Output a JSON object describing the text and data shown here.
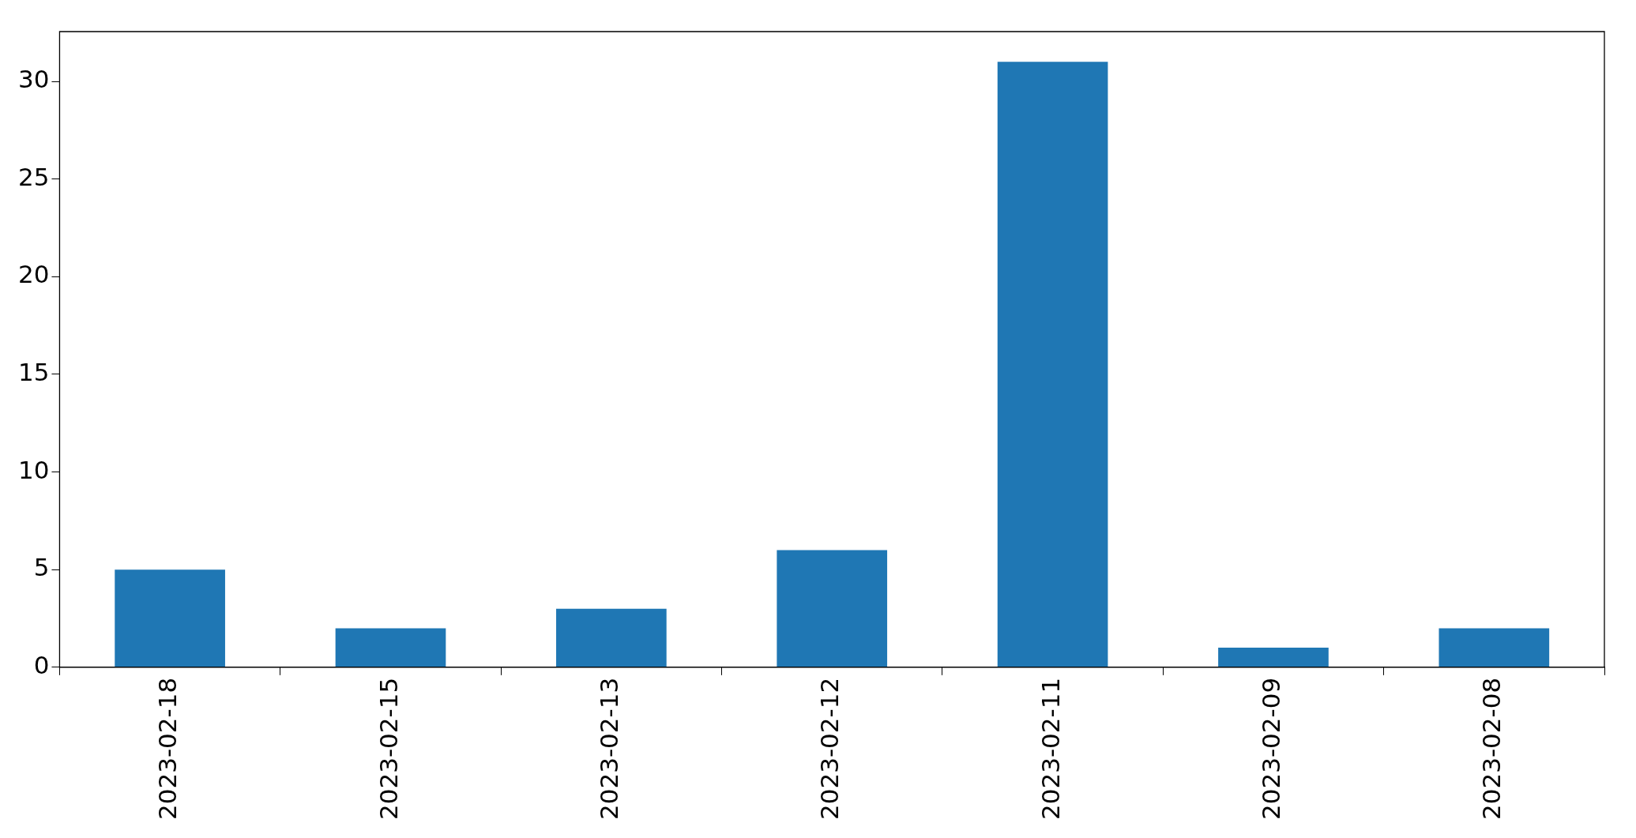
{
  "chart_data": {
    "type": "bar",
    "categories": [
      "2023-02-18",
      "2023-02-15",
      "2023-02-13",
      "2023-02-12",
      "2023-02-11",
      "2023-02-09",
      "2023-02-08"
    ],
    "values": [
      5,
      2,
      3,
      6,
      31,
      1,
      2
    ],
    "color": "#1f77b4",
    "ylim": [
      0,
      32.55
    ],
    "yticks": [
      0,
      5,
      10,
      15,
      20,
      25,
      30
    ],
    "grid": false,
    "legend": false
  }
}
